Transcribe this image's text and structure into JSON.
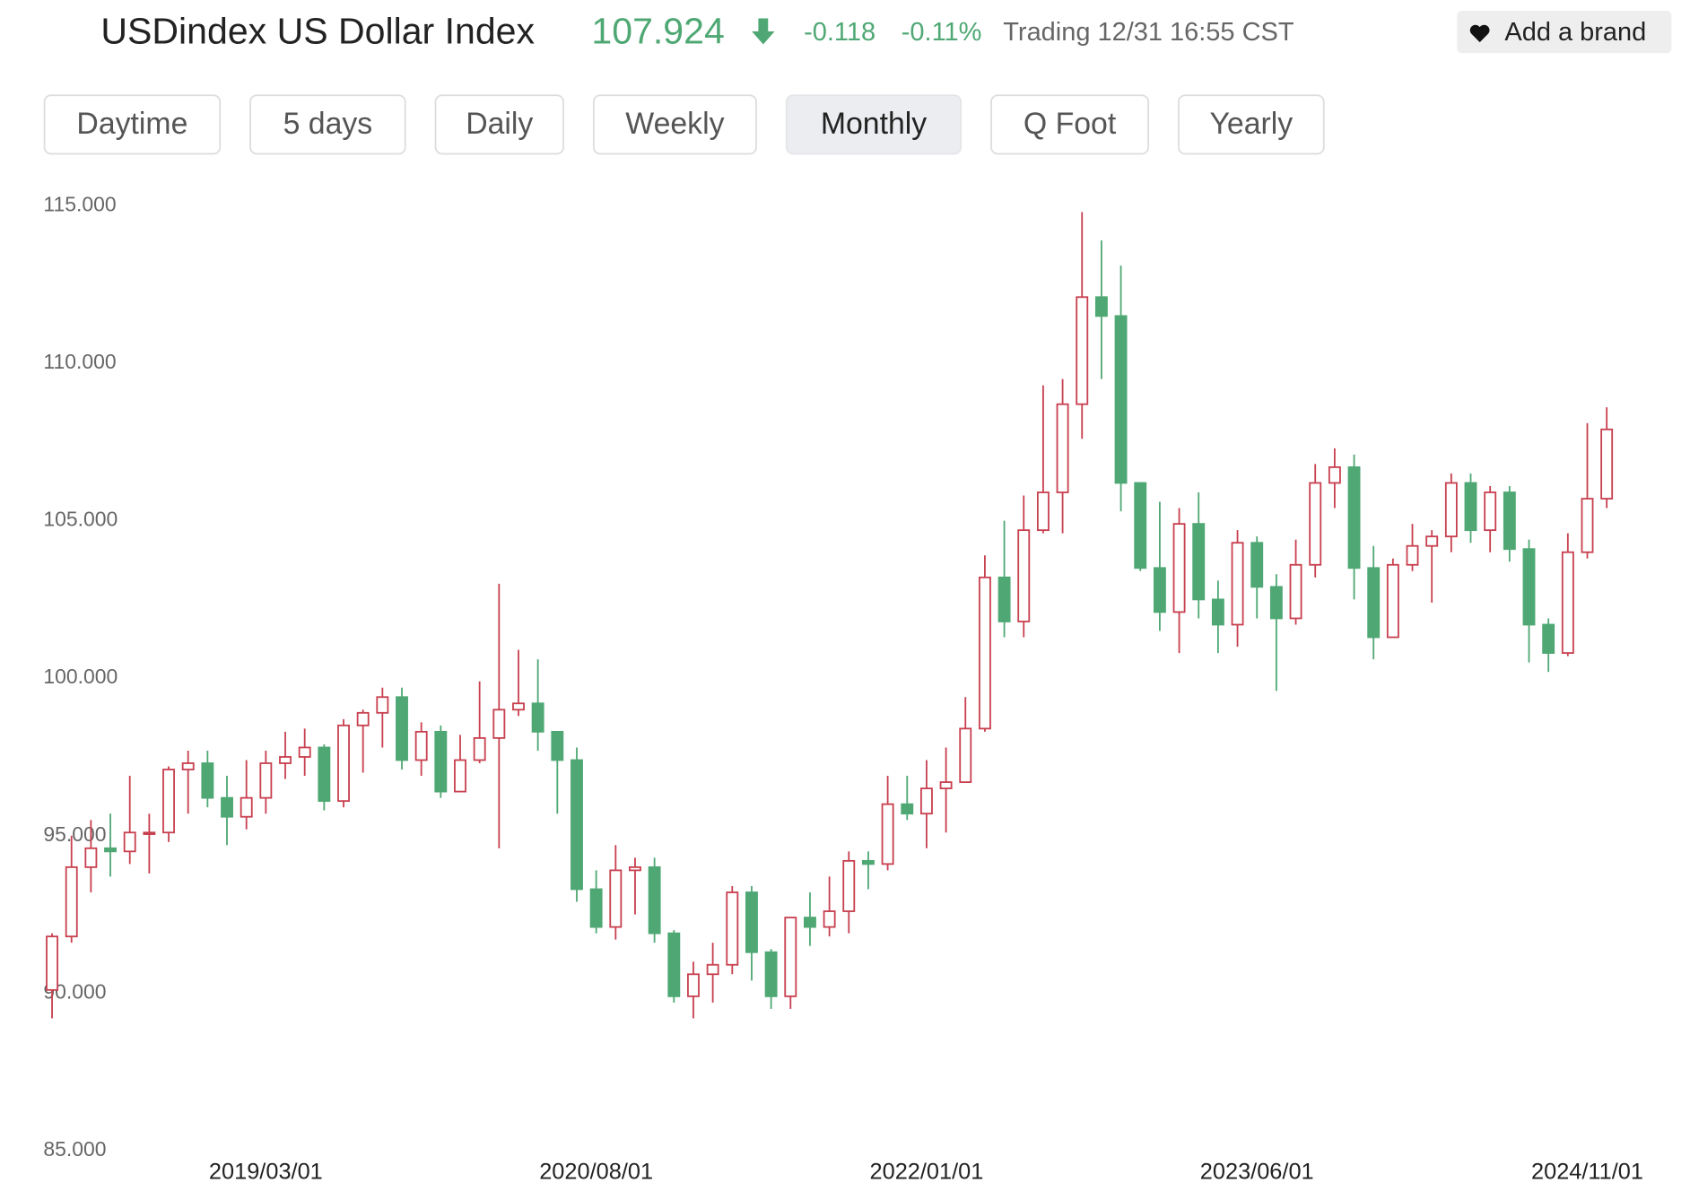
{
  "header": {
    "title": "USDindex US Dollar Index",
    "price": "107.924",
    "change": "-0.118",
    "change_percent": "-0.11%",
    "status": "Trading 12/31 16:55 CST",
    "button": "Add a brand"
  },
  "tabs": [
    "Daytime",
    "5 days",
    "Daily",
    "Weekly",
    "Monthly",
    "Q Foot",
    "Yearly"
  ],
  "active_tab": 4,
  "chart_data": {
    "type": "candlestick",
    "categories": [
      null,
      null,
      null,
      null,
      null,
      null,
      null,
      null,
      null,
      null,
      null,
      "2019/03/01",
      null,
      null,
      null,
      null,
      null,
      null,
      null,
      null,
      null,
      null,
      null,
      null,
      null,
      null,
      null,
      null,
      "2020/08/01",
      null,
      null,
      null,
      null,
      null,
      null,
      null,
      null,
      null,
      null,
      null,
      null,
      null,
      null,
      null,
      null,
      "2022/01/01",
      null,
      null,
      null,
      null,
      null,
      null,
      null,
      null,
      null,
      null,
      null,
      null,
      null,
      null,
      null,
      null,
      "2023/06/01",
      null,
      null,
      null,
      null,
      null,
      null,
      null,
      null,
      null,
      null,
      null,
      null,
      null,
      null,
      null,
      null,
      "2024/11/01",
      null
    ],
    "open": [
      90.1,
      91.8,
      94.0,
      94.6,
      94.5,
      95.1,
      95.1,
      97.1,
      97.3,
      96.2,
      95.6,
      96.2,
      97.3,
      97.5,
      97.8,
      96.1,
      98.5,
      98.9,
      99.4,
      97.4,
      98.3,
      96.4,
      97.4,
      98.1,
      99.0,
      99.2,
      98.3,
      97.4,
      93.3,
      92.1,
      93.9,
      94.0,
      91.9,
      89.9,
      90.6,
      90.9,
      93.2,
      91.3,
      89.9,
      92.4,
      92.1,
      92.6,
      94.2,
      94.1,
      96.0,
      95.7,
      96.5,
      96.7,
      98.4,
      103.2,
      101.8,
      104.7,
      105.9,
      108.7,
      112.1,
      111.5,
      106.2,
      103.5,
      102.1,
      104.9,
      102.5,
      101.7,
      104.3,
      102.9,
      101.9,
      103.6,
      106.2,
      106.7,
      103.5,
      101.3,
      103.6,
      104.2,
      104.5,
      106.2,
      104.7,
      105.9,
      104.1,
      101.7,
      100.8,
      104.0,
      105.7
    ],
    "high": [
      91.9,
      95.0,
      95.5,
      95.7,
      96.9,
      95.7,
      97.2,
      97.7,
      97.7,
      96.9,
      97.4,
      97.7,
      98.3,
      98.4,
      97.9,
      98.7,
      99.0,
      99.7,
      99.7,
      98.6,
      98.5,
      98.2,
      99.9,
      103.0,
      100.9,
      100.6,
      98.3,
      97.8,
      93.9,
      94.7,
      94.3,
      94.3,
      92.0,
      91.0,
      91.6,
      93.4,
      93.4,
      91.4,
      92.4,
      93.2,
      93.7,
      94.5,
      94.5,
      96.9,
      96.9,
      97.4,
      97.8,
      99.4,
      103.9,
      105.0,
      105.8,
      109.3,
      109.5,
      114.8,
      113.9,
      113.1,
      106.2,
      105.6,
      105.4,
      105.9,
      103.1,
      104.7,
      104.5,
      103.3,
      104.4,
      106.8,
      107.3,
      107.1,
      104.2,
      103.8,
      104.9,
      104.7,
      106.5,
      106.5,
      106.1,
      106.1,
      104.4,
      101.9,
      104.6,
      108.1,
      108.6
    ],
    "low": [
      89.2,
      91.6,
      93.2,
      93.7,
      94.1,
      93.8,
      94.8,
      95.7,
      95.9,
      94.7,
      95.2,
      95.7,
      96.8,
      96.9,
      95.8,
      95.9,
      97.0,
      97.8,
      97.1,
      96.9,
      96.2,
      96.4,
      97.3,
      94.6,
      98.8,
      97.7,
      95.7,
      92.9,
      91.9,
      91.7,
      92.5,
      91.6,
      89.7,
      89.2,
      89.7,
      90.6,
      90.4,
      89.5,
      89.5,
      91.5,
      91.8,
      91.9,
      93.3,
      93.9,
      95.5,
      94.6,
      95.1,
      96.8,
      98.3,
      101.3,
      101.3,
      104.6,
      104.6,
      107.6,
      109.5,
      105.3,
      103.4,
      101.5,
      100.8,
      101.9,
      100.8,
      101.0,
      101.9,
      99.6,
      101.7,
      103.2,
      105.4,
      102.5,
      100.6,
      101.3,
      103.4,
      102.4,
      104.0,
      104.3,
      104.0,
      103.7,
      100.5,
      100.2,
      100.7,
      103.8,
      105.4
    ],
    "close": [
      91.8,
      94.0,
      94.6,
      94.5,
      95.1,
      95.1,
      97.1,
      97.3,
      96.2,
      95.6,
      96.2,
      97.3,
      97.5,
      97.8,
      96.1,
      98.5,
      98.9,
      99.4,
      97.4,
      98.3,
      96.4,
      97.4,
      98.1,
      99.0,
      99.2,
      98.3,
      97.4,
      93.3,
      92.1,
      93.9,
      94.0,
      91.9,
      89.9,
      90.6,
      90.9,
      93.2,
      91.3,
      89.9,
      92.4,
      92.1,
      92.6,
      94.2,
      94.1,
      96.0,
      95.7,
      96.5,
      96.7,
      98.4,
      103.2,
      101.8,
      104.7,
      105.9,
      108.7,
      112.1,
      111.5,
      106.2,
      103.5,
      102.1,
      104.9,
      102.5,
      101.7,
      104.3,
      102.9,
      101.9,
      103.6,
      106.2,
      106.7,
      103.5,
      101.3,
      103.6,
      104.2,
      104.5,
      106.2,
      104.7,
      105.9,
      104.1,
      101.7,
      100.8,
      104.0,
      105.7,
      107.9
    ],
    "up_color": "#c8404f",
    "down_color": "#4fa874",
    "ylim": [
      85,
      115
    ],
    "yticks": [
      {
        "value": 85,
        "label": "85.000"
      },
      {
        "value": 90,
        "label": "90.000"
      },
      {
        "value": 95,
        "label": "95.000"
      },
      {
        "value": 100,
        "label": "100.000"
      },
      {
        "value": 105,
        "label": "105.000"
      },
      {
        "value": 110,
        "label": "110.000"
      },
      {
        "value": 115,
        "label": "115.000"
      }
    ],
    "grid": false
  }
}
